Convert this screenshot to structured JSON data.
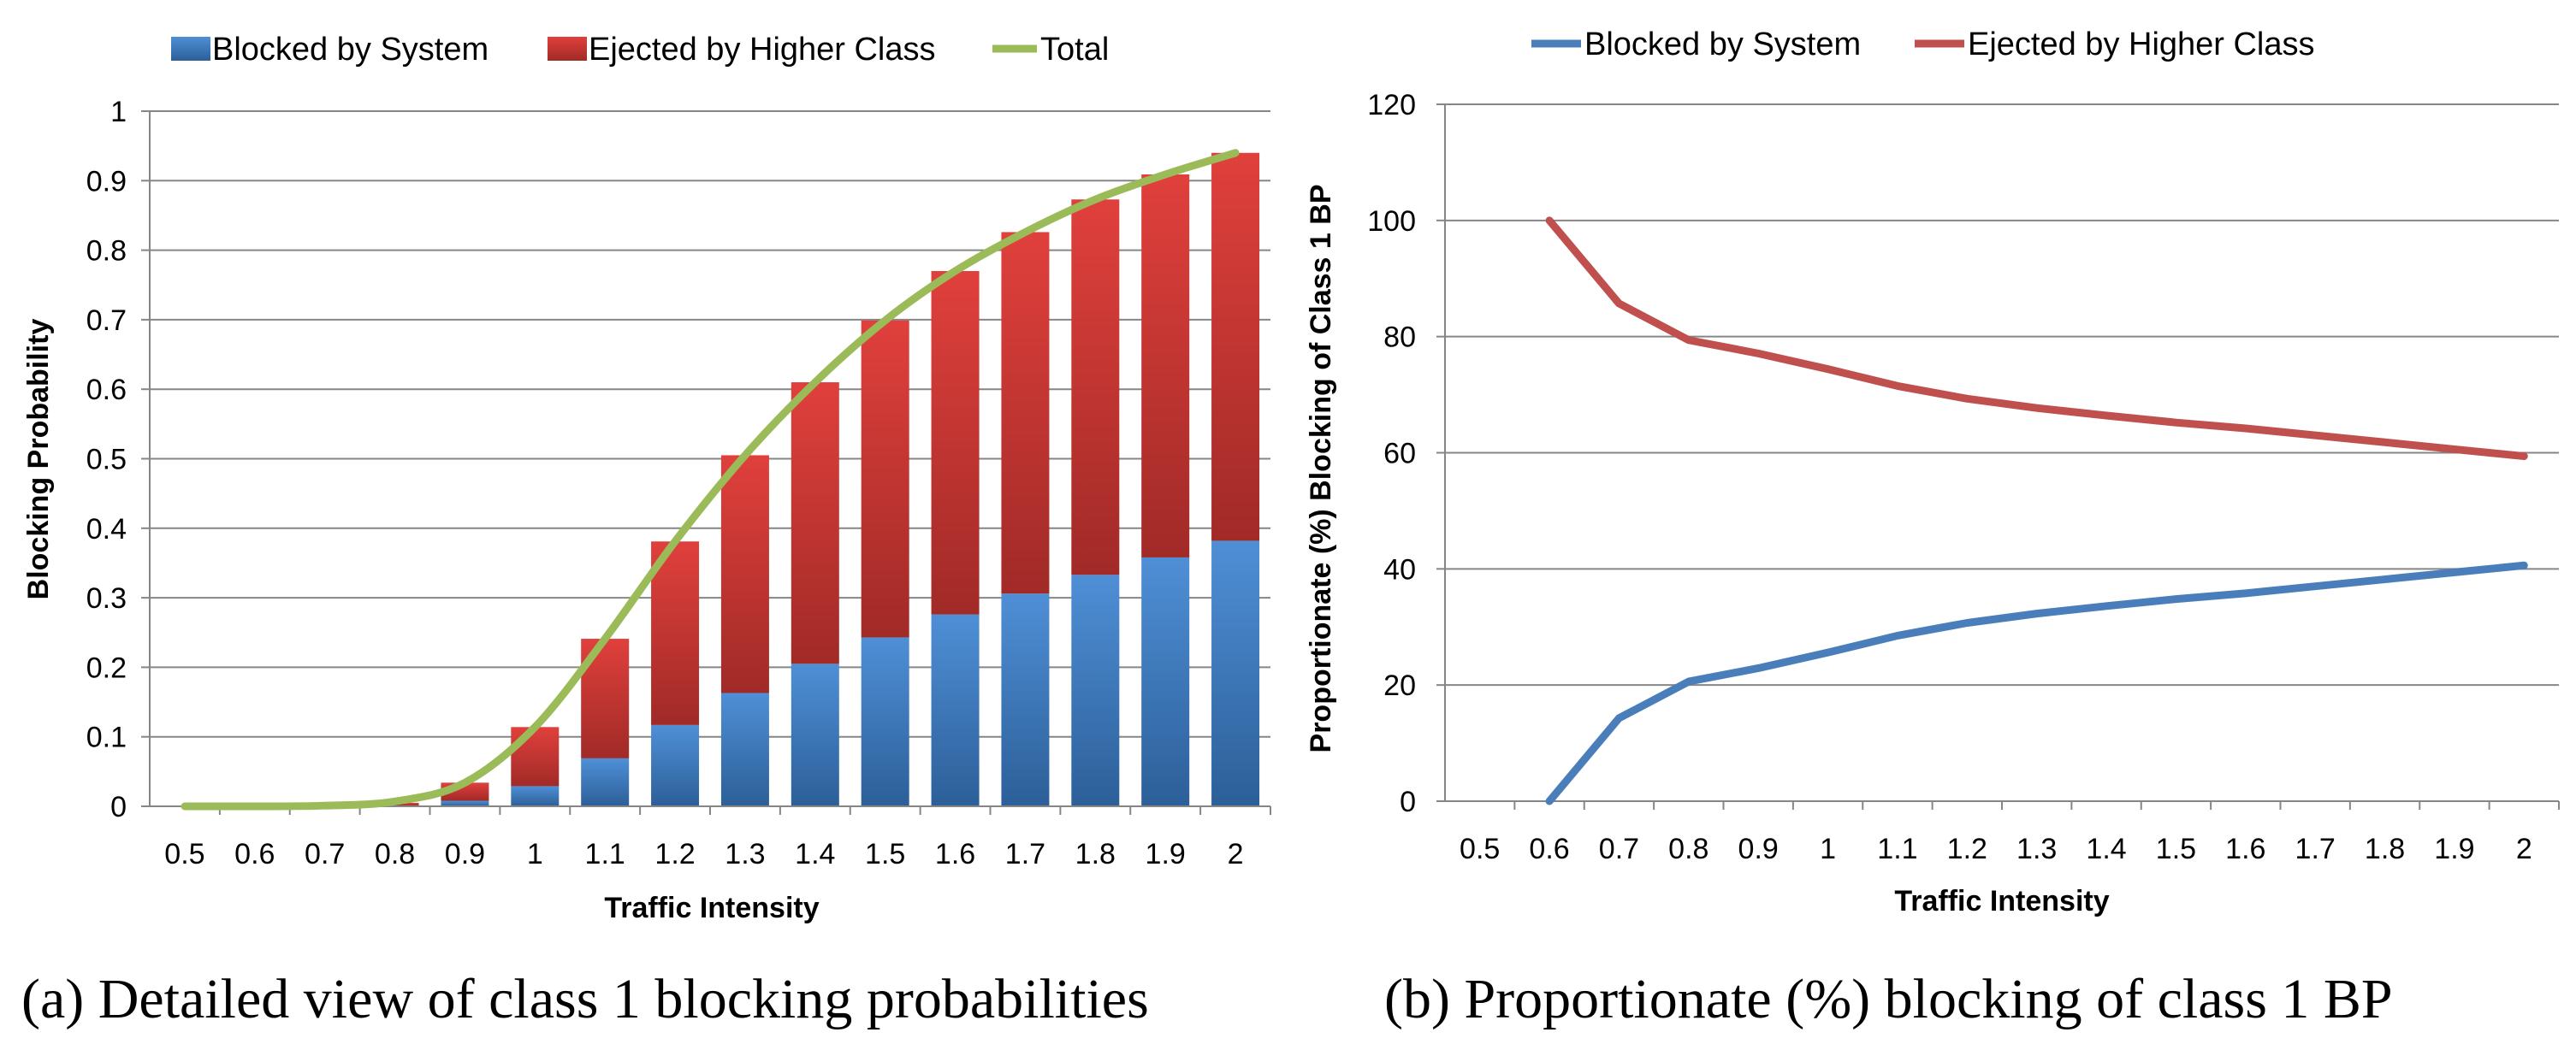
{
  "chart_data": [
    {
      "type": "bar",
      "stacked": true,
      "categories": [
        "0.5",
        "0.6",
        "0.7",
        "0.8",
        "0.9",
        "1",
        "1.1",
        "1.2",
        "1.3",
        "1.4",
        "1.5",
        "1.6",
        "1.7",
        "1.8",
        "1.9",
        "2"
      ],
      "series": [
        {
          "name": "Blocked by System",
          "color": "#4a7ebb",
          "values": [
            0,
            0,
            0,
            0.001,
            0.008,
            0.029,
            0.069,
            0.117,
            0.163,
            0.205,
            0.243,
            0.276,
            0.306,
            0.333,
            0.358,
            0.382
          ]
        },
        {
          "name": "Ejected by Higher Class",
          "color": "#c0504d",
          "values": [
            0,
            0,
            0,
            0.004,
            0.026,
            0.085,
            0.172,
            0.264,
            0.342,
            0.405,
            0.456,
            0.494,
            0.52,
            0.54,
            0.551,
            0.558
          ]
        }
      ],
      "line": {
        "name": "Total",
        "color": "#9bbb59",
        "values": [
          0,
          0,
          0.001,
          0.007,
          0.034,
          0.114,
          0.241,
          0.381,
          0.505,
          0.61,
          0.699,
          0.77,
          0.826,
          0.873,
          0.909,
          0.94
        ]
      },
      "ylim": [
        0,
        1
      ],
      "yticks": [
        "0",
        "0.1",
        "0.2",
        "0.3",
        "0.4",
        "0.5",
        "0.6",
        "0.7",
        "0.8",
        "0.9",
        "1"
      ],
      "xlabel": "Traffic Intensity",
      "ylabel": "Blocking Probability",
      "legend": [
        "Blocked by System",
        "Ejected by Higher Class",
        "Total"
      ],
      "caption": "(a) Detailed view of class 1 blocking probabilities"
    },
    {
      "type": "line",
      "categories": [
        "0.5",
        "0.6",
        "0.7",
        "0.8",
        "0.9",
        "1",
        "1.1",
        "1.2",
        "1.3",
        "1.4",
        "1.5",
        "1.6",
        "1.7",
        "1.8",
        "1.9",
        "2"
      ],
      "series": [
        {
          "name": "Blocked by System",
          "color": "#4a7ebb",
          "values": [
            null,
            0,
            14.3,
            20.6,
            22.9,
            25.6,
            28.5,
            30.7,
            32.3,
            33.6,
            34.8,
            35.8,
            37.0,
            38.2,
            39.4,
            40.6
          ]
        },
        {
          "name": "Ejected by Higher Class",
          "color": "#c0504d",
          "values": [
            null,
            100,
            85.7,
            79.4,
            77.1,
            74.4,
            71.5,
            69.3,
            67.7,
            66.4,
            65.2,
            64.2,
            63.0,
            61.8,
            60.6,
            59.4
          ]
        }
      ],
      "ylim": [
        0,
        120
      ],
      "yticks": [
        "0",
        "20",
        "40",
        "60",
        "80",
        "100",
        "120"
      ],
      "xlabel": "Traffic Intensity",
      "ylabel": "Proportionate (%) Blocking of Class 1 BP",
      "legend": [
        "Blocked by System",
        "Ejected by Higher Class"
      ],
      "caption": "(b) Proportionate (%) blocking of class 1 BP"
    }
  ]
}
